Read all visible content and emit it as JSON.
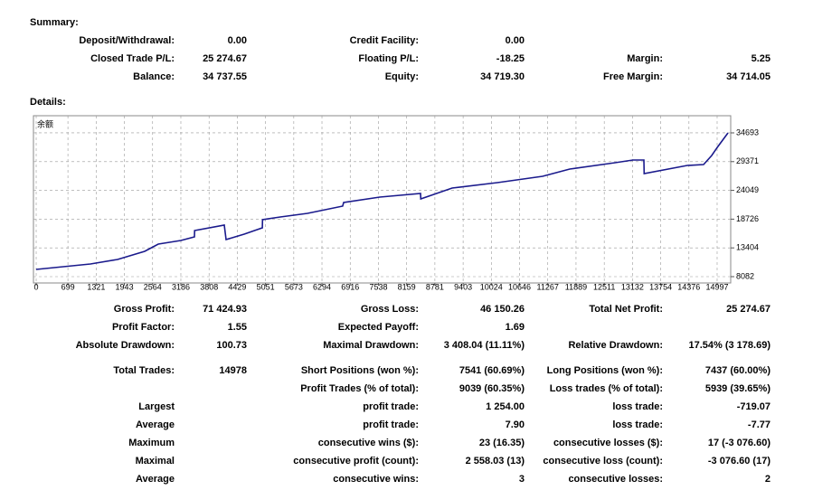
{
  "summary": {
    "title": "Summary:",
    "rows": [
      [
        "Deposit/Withdrawal:",
        "0.00",
        "Credit Facility:",
        "0.00",
        null,
        null
      ],
      [
        "Closed Trade P/L:",
        "25 274.67",
        "Floating P/L:",
        "-18.25",
        "Margin:",
        "5.25"
      ],
      [
        "Balance:",
        "34 737.55",
        "Equity:",
        "34 719.30",
        "Free Margin:",
        "34 714.05"
      ]
    ]
  },
  "details_title": "Details:",
  "chart_data": {
    "type": "line",
    "x": [
      0,
      398,
      1195,
      1793,
      2390,
      2689,
      3187,
      3486,
      3490,
      4143,
      4183,
      4581,
      4980,
      4985,
      5378,
      5975,
      6750,
      6772,
      7569,
      8465,
      8470,
      9162,
      10158,
      11154,
      11751,
      12747,
      13145,
      13384,
      13390,
      14340,
      14698,
      14877,
      15000,
      15236
    ],
    "series": [
      {
        "name": "余额",
        "color": "#1a1a8c",
        "values": [
          9421,
          9756,
          10425,
          11262,
          12769,
          14108,
          14778,
          15447,
          16619,
          17623,
          14945,
          15949,
          17121,
          18628,
          19130,
          19800,
          21140,
          21809,
          22813,
          23483,
          22478,
          24486,
          25491,
          26662,
          28002,
          29173,
          29675,
          29675,
          27165,
          28671,
          28839,
          30513,
          32000,
          34693
        ]
      }
    ],
    "xlim": [
      -60,
      15296
    ],
    "ylim": [
      6910,
      37870
    ],
    "xticks": [
      0,
      699,
      1321,
      1943,
      2564,
      3186,
      3808,
      4429,
      5051,
      5673,
      6294,
      6916,
      7538,
      8159,
      8781,
      9403,
      10024,
      10646,
      11267,
      11889,
      12511,
      13132,
      13754,
      14376,
      14997
    ],
    "yticks": [
      8082,
      13404,
      18726,
      24049,
      29371,
      34693
    ],
    "grid": true
  },
  "stats": {
    "rows": [
      [
        "Gross Profit:",
        "71 424.93",
        "Gross Loss:",
        "46 150.26",
        "Total Net Profit:",
        "25 274.67"
      ],
      [
        "Profit Factor:",
        "1.55",
        "Expected Payoff:",
        "1.69",
        null,
        null
      ],
      [
        "Absolute Drawdown:",
        "100.73",
        "Maximal Drawdown:",
        "3 408.04 (11.11%)",
        "Relative Drawdown:",
        "17.54% (3 178.69)"
      ],
      [
        "Total Trades:",
        "14978",
        "Short Positions (won %):",
        "7541 (60.69%)",
        "Long Positions (won %):",
        "7437 (60.00%)"
      ],
      [
        null,
        null,
        "Profit Trades (% of total):",
        "9039 (60.35%)",
        "Loss trades (% of total):",
        "5939 (39.65%)"
      ],
      [
        "Largest",
        null,
        "profit trade:",
        "1 254.00",
        "loss trade:",
        "-719.07"
      ],
      [
        "Average",
        null,
        "profit trade:",
        "7.90",
        "loss trade:",
        "-7.77"
      ],
      [
        "Maximum",
        null,
        "consecutive wins ($):",
        "23 (16.35)",
        "consecutive losses ($):",
        "17 (-3 076.60)"
      ],
      [
        "Maximal",
        null,
        "consecutive profit (count):",
        "2 558.03 (13)",
        "consecutive loss (count):",
        "-3 076.60 (17)"
      ],
      [
        "Average",
        null,
        "consecutive wins:",
        "3",
        "consecutive losses:",
        "2"
      ]
    ]
  }
}
